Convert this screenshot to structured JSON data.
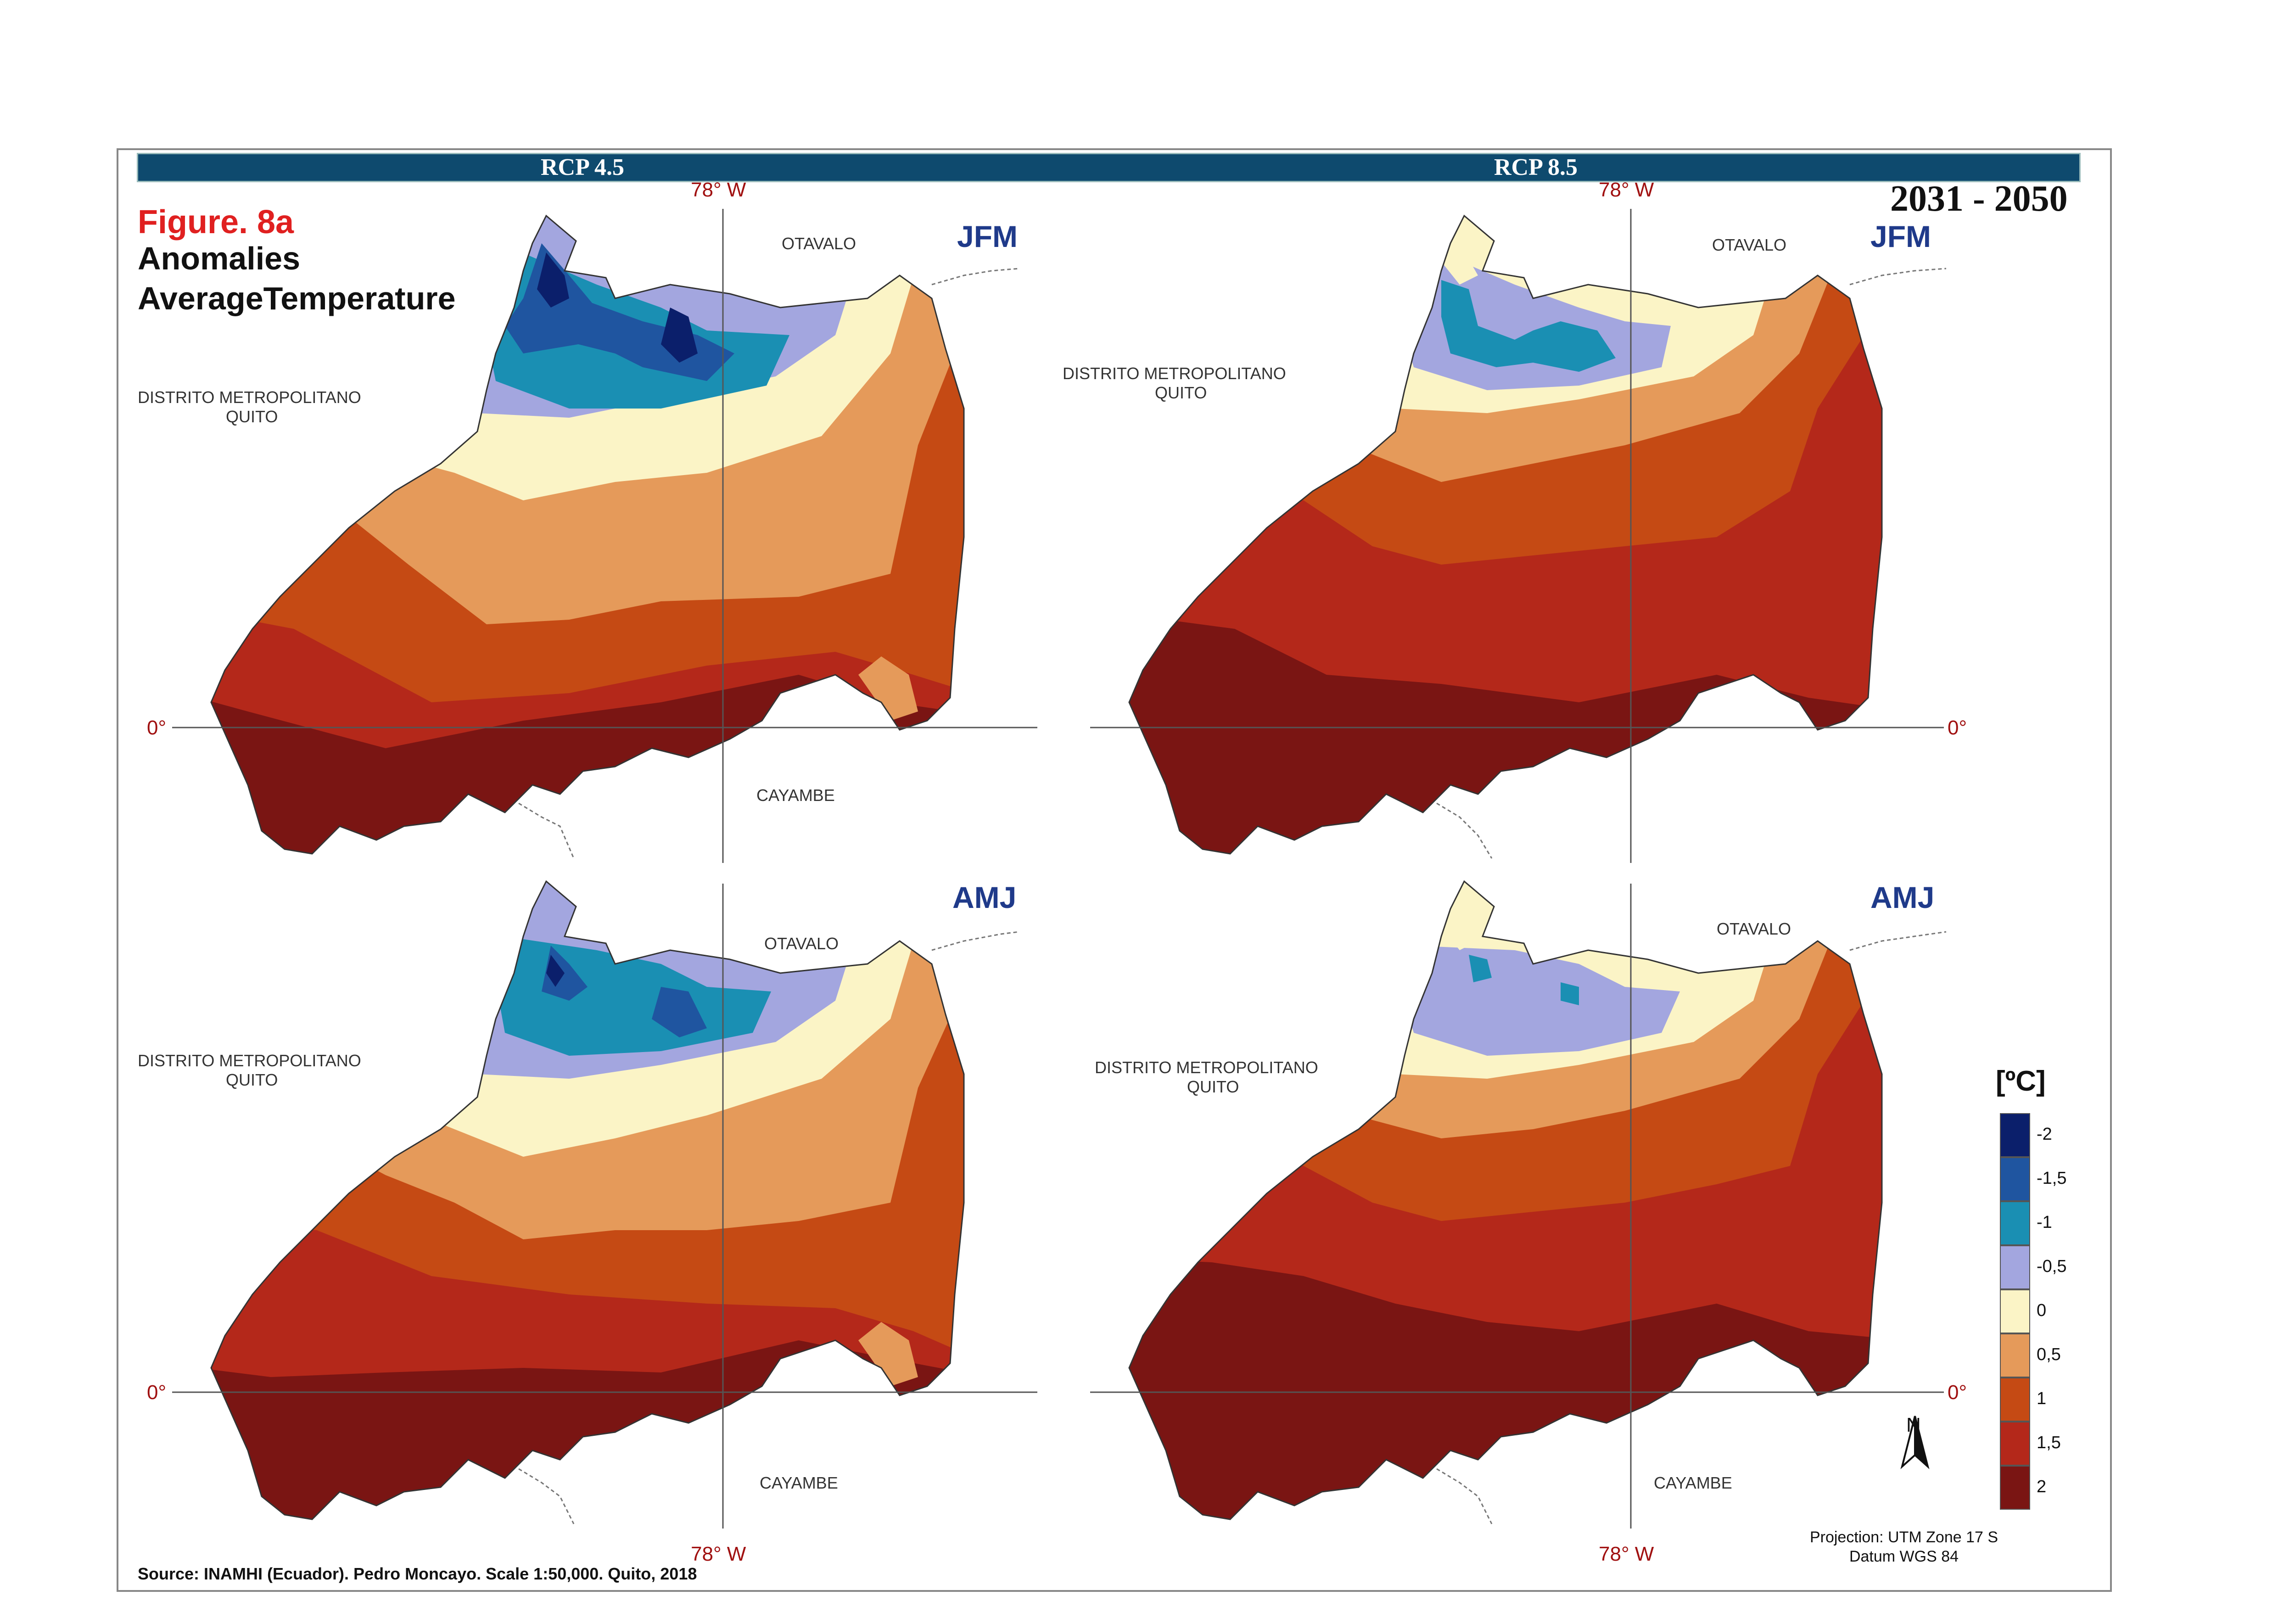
{
  "header": {
    "left_scenario": "RCP 4.5",
    "right_scenario": "RCP 8.5",
    "period": "2031 - 2050"
  },
  "figure": {
    "number": "Figure. 8a",
    "line1": "Anomalies",
    "line2": "AverageTemperature"
  },
  "panels": [
    {
      "season": "JFM",
      "scenario": "RCP 4.5",
      "lon_label": "78° W",
      "lat_label": "0°",
      "north_place": "OTAVALO",
      "south_place": "CAYAMBE",
      "west_place_1": "DISTRITO METROPOLITANO",
      "west_place_2": "QUITO"
    },
    {
      "season": "JFM",
      "scenario": "RCP 8.5",
      "lon_label": "78° W",
      "lat_label": "0°",
      "north_place": "OTAVALO",
      "south_place": "",
      "west_place_1": "DISTRITO METROPOLITANO",
      "west_place_2": "QUITO"
    },
    {
      "season": "AMJ",
      "scenario": "RCP 4.5",
      "lon_label": "",
      "lat_label": "0°",
      "north_place": "OTAVALO",
      "south_place": "CAYAMBE",
      "west_place_1": "DISTRITO METROPOLITANO",
      "west_place_2": "QUITO"
    },
    {
      "season": "AMJ",
      "scenario": "RCP 8.5",
      "lon_label": "",
      "lat_label": "0°",
      "north_place": "OTAVALO",
      "south_place": "CAYAMBE",
      "west_place_1": "DISTRITO METROPOLITANO",
      "west_place_2": "QUITO"
    }
  ],
  "bottom_lon_labels": [
    "78° W",
    "78° W"
  ],
  "legend": {
    "title": "[ºC]",
    "classes": [
      {
        "label": "-2",
        "color": "#0b1f6b"
      },
      {
        "label": "-1,5",
        "color": "#1f55a0"
      },
      {
        "label": "-1",
        "color": "#1a8fb3"
      },
      {
        "label": "-0,5",
        "color": "#a3a6df"
      },
      {
        "label": "0",
        "color": "#fbf4c6"
      },
      {
        "label": "0,5",
        "color": "#e59a5a"
      },
      {
        "label": "1",
        "color": "#c54a14"
      },
      {
        "label": "1,5",
        "color": "#b4281a"
      },
      {
        "label": "2",
        "color": "#7a1513"
      }
    ]
  },
  "north_arrow": {
    "label": "N",
    "icon": "north-arrow-icon"
  },
  "projection": {
    "line1": "Projection: UTM Zone 17 S",
    "line2": "Datum WGS 84"
  },
  "source": "Source: INAMHI (Ecuador). Pedro Moncayo. Scale 1:50,000. Quito, 2018"
}
